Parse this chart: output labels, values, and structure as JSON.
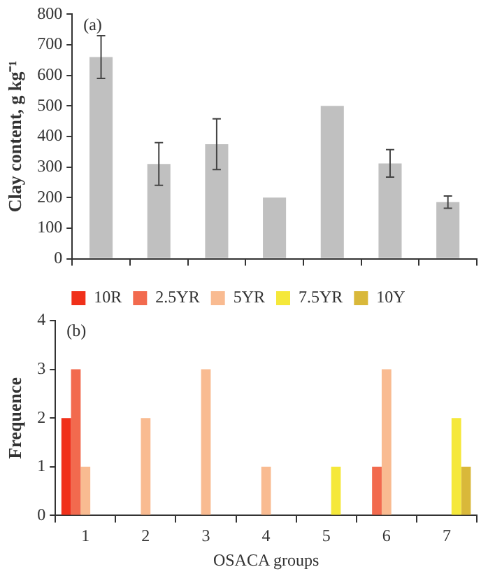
{
  "chart_data": [
    {
      "type": "bar",
      "ylabel": "Clay content, g kg⁻¹",
      "annotations": [
        "(a)"
      ],
      "categories": [
        null,
        null,
        null,
        null,
        null,
        null,
        null
      ],
      "values": [
        660,
        310,
        375,
        200,
        500,
        312,
        185
      ],
      "errors": [
        70,
        70,
        83,
        null,
        null,
        45,
        20
      ],
      "color": "#c0c0c0",
      "ylim": [
        0,
        800
      ],
      "yticks": [
        0,
        100,
        200,
        300,
        400,
        500,
        600,
        700,
        800
      ],
      "grid": false,
      "legend": false,
      "tick_labels": "y"
    },
    {
      "type": "bar",
      "xlabel": "OSACA groups",
      "ylabel": "Frequence",
      "annotations": [
        "(b)"
      ],
      "categories": [
        "1",
        "2",
        "3",
        "4",
        "5",
        "6",
        "7"
      ],
      "series": [
        {
          "name": "10R",
          "color": "#f0301a",
          "values": [
            2,
            0,
            0,
            0,
            0,
            0,
            0
          ]
        },
        {
          "name": "2.5YR",
          "color": "#f26a4e",
          "values": [
            3,
            0,
            0,
            0,
            0,
            1,
            0
          ]
        },
        {
          "name": "5YR",
          "color": "#f9bb91",
          "values": [
            1,
            2,
            3,
            1,
            0,
            3,
            0
          ]
        },
        {
          "name": "7.5YR",
          "color": "#f5e83a",
          "values": [
            0,
            0,
            0,
            0,
            1,
            0,
            2
          ]
        },
        {
          "name": "10Y",
          "color": "#d9b83a",
          "values": [
            0,
            0,
            0,
            0,
            0,
            0,
            1
          ]
        }
      ],
      "ylim": [
        0,
        4
      ],
      "yticks": [
        0,
        1,
        2,
        3,
        4
      ],
      "grid": false,
      "legend": "top"
    }
  ]
}
